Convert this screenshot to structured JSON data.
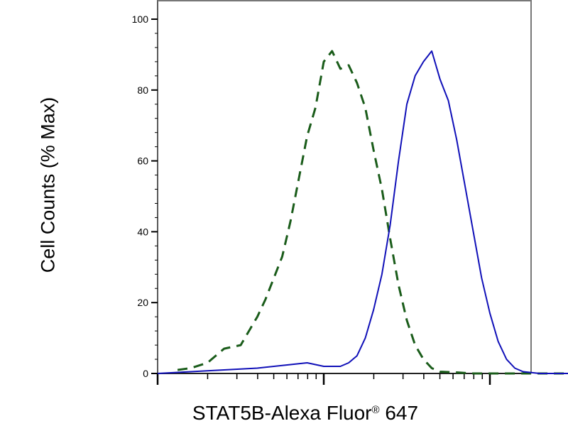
{
  "chart_data": {
    "type": "line",
    "title": "",
    "xlabel_main": "STAT5B-Alexa Fluor",
    "xlabel_reg": "®",
    "xlabel_num": "647",
    "ylabel": "Cell Counts (% Max)",
    "ylim": [
      0,
      100
    ],
    "yticks": [
      "0",
      "20",
      "40",
      "60",
      "80",
      "100"
    ],
    "xlim": [
      0,
      4.5
    ],
    "x_scale": "log",
    "x_major_ticks": [
      0,
      1,
      2
    ],
    "x_tick_labels_shown": false,
    "grid": false,
    "legend": "none",
    "series": [
      {
        "style": "dashed",
        "color": "#1a5c1a",
        "x": [
          0.12,
          0.2,
          0.3,
          0.4,
          0.5,
          0.55,
          0.6,
          0.65,
          0.7,
          0.75,
          0.8,
          0.85,
          0.9,
          0.95,
          1.0,
          1.05,
          1.1,
          1.15,
          1.2,
          1.25,
          1.3,
          1.35,
          1.4,
          1.45,
          1.5,
          1.55,
          1.6,
          1.65,
          1.7,
          1.8,
          1.9,
          2.0,
          2.1,
          2.2,
          2.3,
          2.4,
          2.5
        ],
        "y": [
          1,
          1.5,
          3,
          7,
          8,
          12,
          16,
          21,
          27,
          33,
          43,
          55,
          67,
          75,
          88,
          91,
          86,
          87,
          82,
          75,
          63,
          52,
          38,
          25,
          15,
          8,
          4,
          1.5,
          0.5,
          0.3,
          0,
          0,
          0,
          0,
          0,
          0,
          0
        ]
      },
      {
        "style": "solid",
        "color": "#1010b8",
        "x": [
          0.0,
          0.2,
          0.4,
          0.6,
          0.8,
          0.9,
          0.95,
          1.0,
          1.1,
          1.15,
          1.2,
          1.25,
          1.3,
          1.35,
          1.4,
          1.45,
          1.5,
          1.55,
          1.6,
          1.65,
          1.7,
          1.75,
          1.8,
          1.85,
          1.9,
          1.95,
          2.0,
          2.05,
          2.1,
          2.15,
          2.2,
          2.3,
          2.5,
          2.7,
          3.0,
          3.3,
          3.5,
          3.8,
          4.2
        ],
        "y": [
          0,
          0.5,
          1,
          1.5,
          2.5,
          3,
          2.5,
          2,
          2,
          3,
          5,
          10,
          18,
          28,
          42,
          60,
          76,
          84,
          88,
          91,
          83,
          77,
          66,
          53,
          40,
          27,
          17,
          9,
          4,
          1.5,
          0.5,
          0,
          0,
          0,
          0,
          0,
          0,
          0,
          0
        ]
      }
    ]
  }
}
